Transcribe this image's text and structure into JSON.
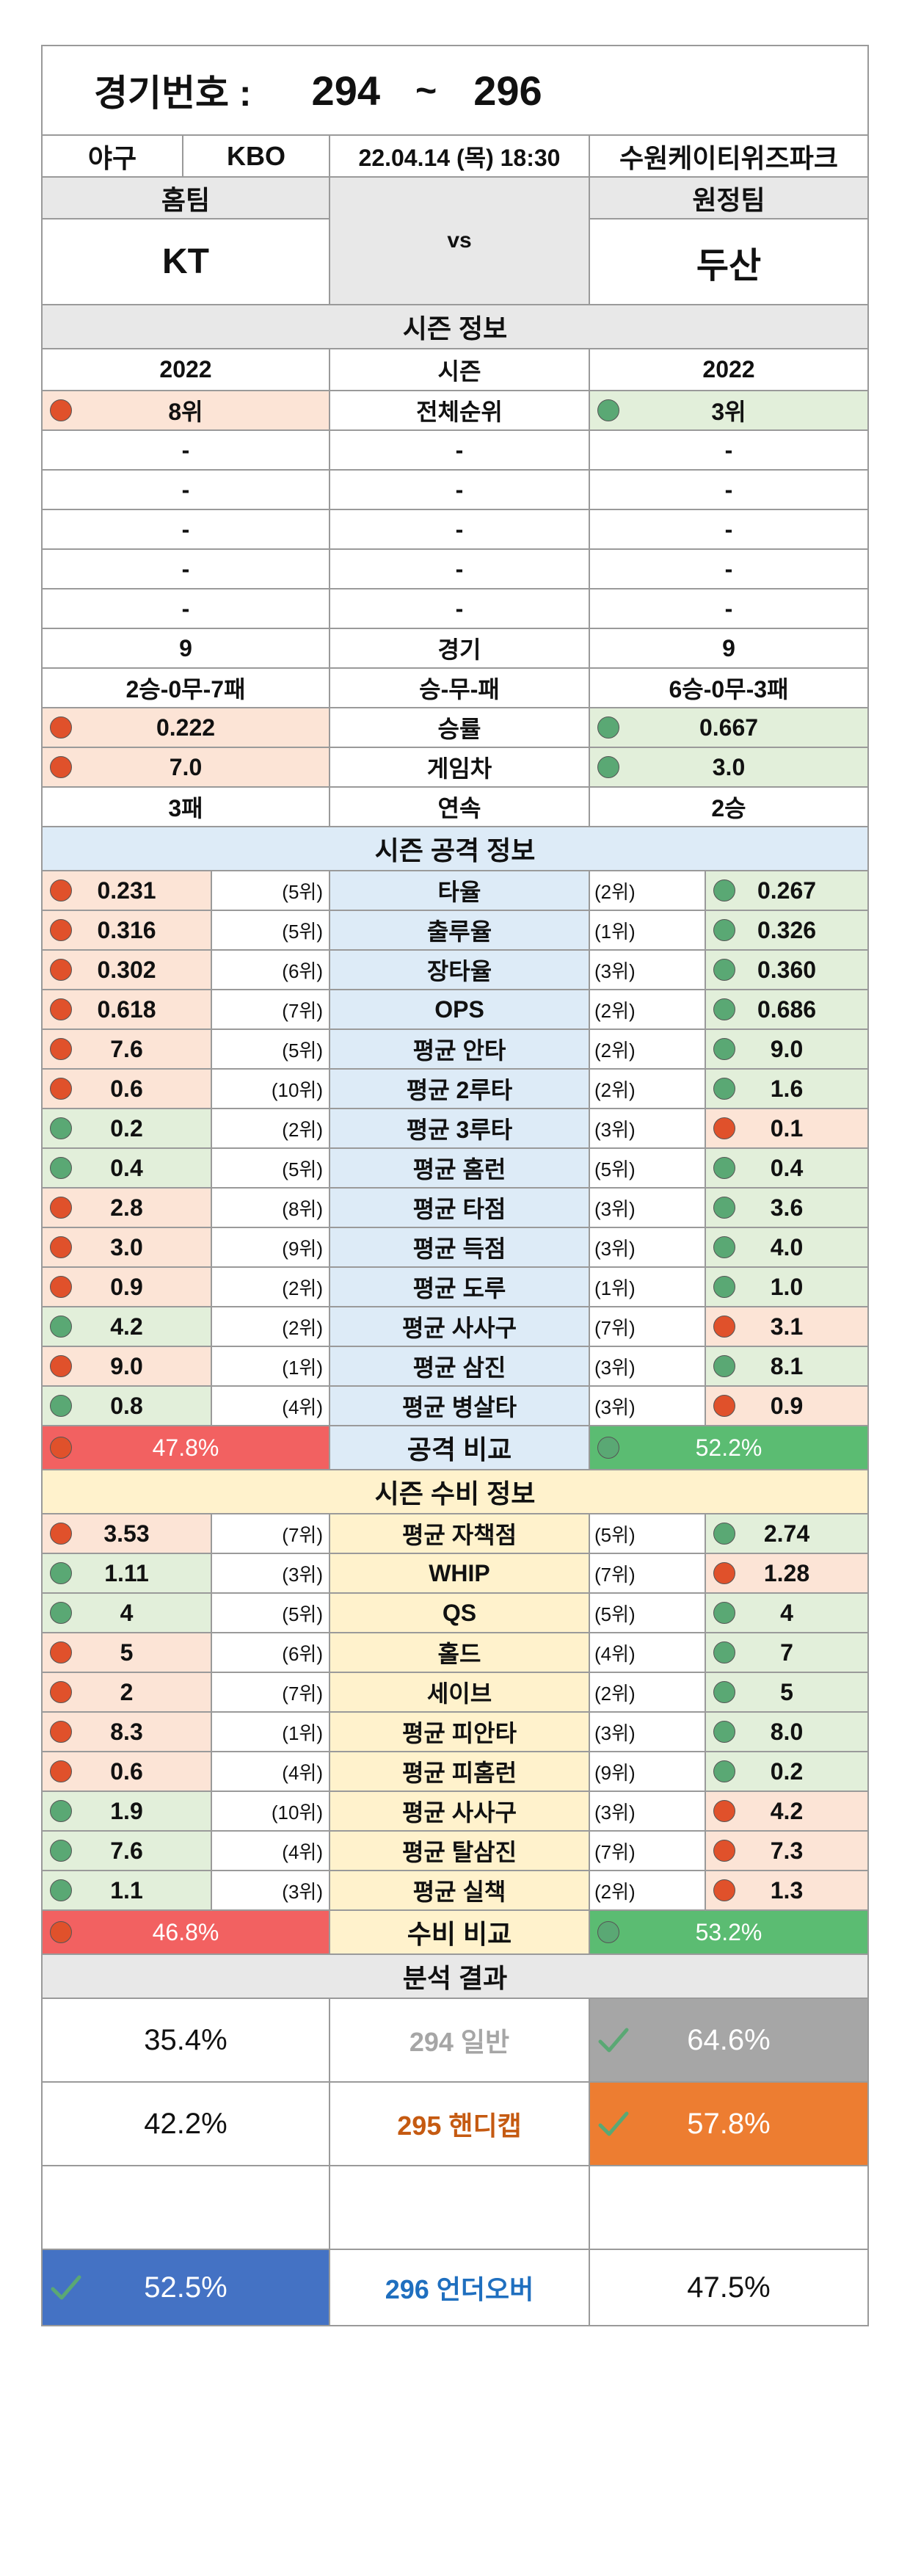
{
  "title": {
    "label": "경기번호 :",
    "from": "294",
    "sep": "~",
    "to": "296"
  },
  "game": {
    "sport": "야구",
    "league": "KBO",
    "datetime": "22.04.14 (목) 18:30",
    "venue": "수원케이티위즈파크"
  },
  "teams": {
    "home_label": "홈팀",
    "away_label": "원정팀",
    "home": "KT",
    "vs": "vs",
    "away": "두산"
  },
  "season": {
    "header": "시즌 정보",
    "rows": [
      {
        "home": "2022",
        "label": "시즌",
        "away": "2022"
      },
      {
        "home": "8위",
        "label": "전체순위",
        "away": "3위",
        "hc": "r",
        "ac": "g"
      },
      {
        "home": "-",
        "label": "-",
        "away": "-"
      },
      {
        "home": "-",
        "label": "-",
        "away": "-"
      },
      {
        "home": "-",
        "label": "-",
        "away": "-"
      },
      {
        "home": "-",
        "label": "-",
        "away": "-"
      },
      {
        "home": "-",
        "label": "-",
        "away": "-"
      },
      {
        "home": "9",
        "label": "경기",
        "away": "9"
      },
      {
        "home": "2승-0무-7패",
        "label": "승-무-패",
        "away": "6승-0무-3패"
      },
      {
        "home": "0.222",
        "label": "승률",
        "away": "0.667",
        "hc": "r",
        "ac": "g"
      },
      {
        "home": "7.0",
        "label": "게임차",
        "away": "3.0",
        "hc": "r",
        "ac": "g"
      },
      {
        "home": "3패",
        "label": "연속",
        "away": "2승"
      }
    ]
  },
  "offense": {
    "header": "시즌 공격 정보",
    "rows": [
      {
        "hv": "0.231",
        "hr": "(5위)",
        "label": "타율",
        "ar": "(2위)",
        "av": "0.267",
        "hc": "r",
        "ac": "g"
      },
      {
        "hv": "0.316",
        "hr": "(5위)",
        "label": "출루율",
        "ar": "(1위)",
        "av": "0.326",
        "hc": "r",
        "ac": "g"
      },
      {
        "hv": "0.302",
        "hr": "(6위)",
        "label": "장타율",
        "ar": "(3위)",
        "av": "0.360",
        "hc": "r",
        "ac": "g"
      },
      {
        "hv": "0.618",
        "hr": "(7위)",
        "label": "OPS",
        "ar": "(2위)",
        "av": "0.686",
        "hc": "r",
        "ac": "g"
      },
      {
        "hv": "7.6",
        "hr": "(5위)",
        "label": "평균 안타",
        "ar": "(2위)",
        "av": "9.0",
        "hc": "r",
        "ac": "g"
      },
      {
        "hv": "0.6",
        "hr": "(10위)",
        "label": "평균 2루타",
        "ar": "(2위)",
        "av": "1.6",
        "hc": "r",
        "ac": "g"
      },
      {
        "hv": "0.2",
        "hr": "(2위)",
        "label": "평균 3루타",
        "ar": "(3위)",
        "av": "0.1",
        "hc": "g",
        "ac": "r"
      },
      {
        "hv": "0.4",
        "hr": "(5위)",
        "label": "평균 홈런",
        "ar": "(5위)",
        "av": "0.4",
        "hc": "g",
        "ac": "g"
      },
      {
        "hv": "2.8",
        "hr": "(8위)",
        "label": "평균 타점",
        "ar": "(3위)",
        "av": "3.6",
        "hc": "r",
        "ac": "g"
      },
      {
        "hv": "3.0",
        "hr": "(9위)",
        "label": "평균 득점",
        "ar": "(3위)",
        "av": "4.0",
        "hc": "r",
        "ac": "g"
      },
      {
        "hv": "0.9",
        "hr": "(2위)",
        "label": "평균 도루",
        "ar": "(1위)",
        "av": "1.0",
        "hc": "r",
        "ac": "g"
      },
      {
        "hv": "4.2",
        "hr": "(2위)",
        "label": "평균 사사구",
        "ar": "(7위)",
        "av": "3.1",
        "hc": "g",
        "ac": "r"
      },
      {
        "hv": "9.0",
        "hr": "(1위)",
        "label": "평균 삼진",
        "ar": "(3위)",
        "av": "8.1",
        "hc": "r",
        "ac": "g"
      },
      {
        "hv": "0.8",
        "hr": "(4위)",
        "label": "평균 병살타",
        "ar": "(3위)",
        "av": "0.9",
        "hc": "g",
        "ac": "r"
      }
    ],
    "compare": {
      "home": "47.8%",
      "label": "공격 비교",
      "away": "52.2%"
    }
  },
  "defense": {
    "header": "시즌 수비 정보",
    "rows": [
      {
        "hv": "3.53",
        "hr": "(7위)",
        "label": "평균 자책점",
        "ar": "(5위)",
        "av": "2.74",
        "hc": "r",
        "ac": "g"
      },
      {
        "hv": "1.11",
        "hr": "(3위)",
        "label": "WHIP",
        "ar": "(7위)",
        "av": "1.28",
        "hc": "g",
        "ac": "r"
      },
      {
        "hv": "4",
        "hr": "(5위)",
        "label": "QS",
        "ar": "(5위)",
        "av": "4",
        "hc": "g",
        "ac": "g"
      },
      {
        "hv": "5",
        "hr": "(6위)",
        "label": "홀드",
        "ar": "(4위)",
        "av": "7",
        "hc": "r",
        "ac": "g"
      },
      {
        "hv": "2",
        "hr": "(7위)",
        "label": "세이브",
        "ar": "(2위)",
        "av": "5",
        "hc": "r",
        "ac": "g"
      },
      {
        "hv": "8.3",
        "hr": "(1위)",
        "label": "평균 피안타",
        "ar": "(3위)",
        "av": "8.0",
        "hc": "r",
        "ac": "g"
      },
      {
        "hv": "0.6",
        "hr": "(4위)",
        "label": "평균 피홈런",
        "ar": "(9위)",
        "av": "0.2",
        "hc": "r",
        "ac": "g"
      },
      {
        "hv": "1.9",
        "hr": "(10위)",
        "label": "평균 사사구",
        "ar": "(3위)",
        "av": "4.2",
        "hc": "g",
        "ac": "r"
      },
      {
        "hv": "7.6",
        "hr": "(4위)",
        "label": "평균 탈삼진",
        "ar": "(7위)",
        "av": "7.3",
        "hc": "g",
        "ac": "r"
      },
      {
        "hv": "1.1",
        "hr": "(3위)",
        "label": "평균 실책",
        "ar": "(2위)",
        "av": "1.3",
        "hc": "g",
        "ac": "r"
      }
    ],
    "compare": {
      "home": "46.8%",
      "label": "수비 비교",
      "away": "53.2%"
    }
  },
  "analysis": {
    "header": "분석 결과",
    "rows": [
      {
        "left": "35.4%",
        "mid": "294 일반",
        "right": "64.6%",
        "pick": "right"
      },
      {
        "left": "42.2%",
        "mid": "295 핸디캡",
        "right": "57.8%",
        "pick": "right"
      },
      {
        "left": "52.5%",
        "mid": "296 언더오버",
        "right": "47.5%",
        "pick": "left"
      }
    ]
  },
  "colors": {
    "dot_red": "#e0512b",
    "dot_green": "#5aa874",
    "cell_red": "#fce4d6",
    "cell_green": "#e2efda",
    "compare_red": "#f26161",
    "compare_green": "#5bbc72",
    "offense_bg": "#ddebf7",
    "defense_bg": "#fff2cc",
    "pick_general": "#a6a6a6",
    "pick_handicap": "#ed7d31",
    "pick_overunder": "#4472c4",
    "label_general": "#a6a6a6",
    "label_handicap": "#c55a11",
    "label_overunder": "#1f6fbf"
  }
}
